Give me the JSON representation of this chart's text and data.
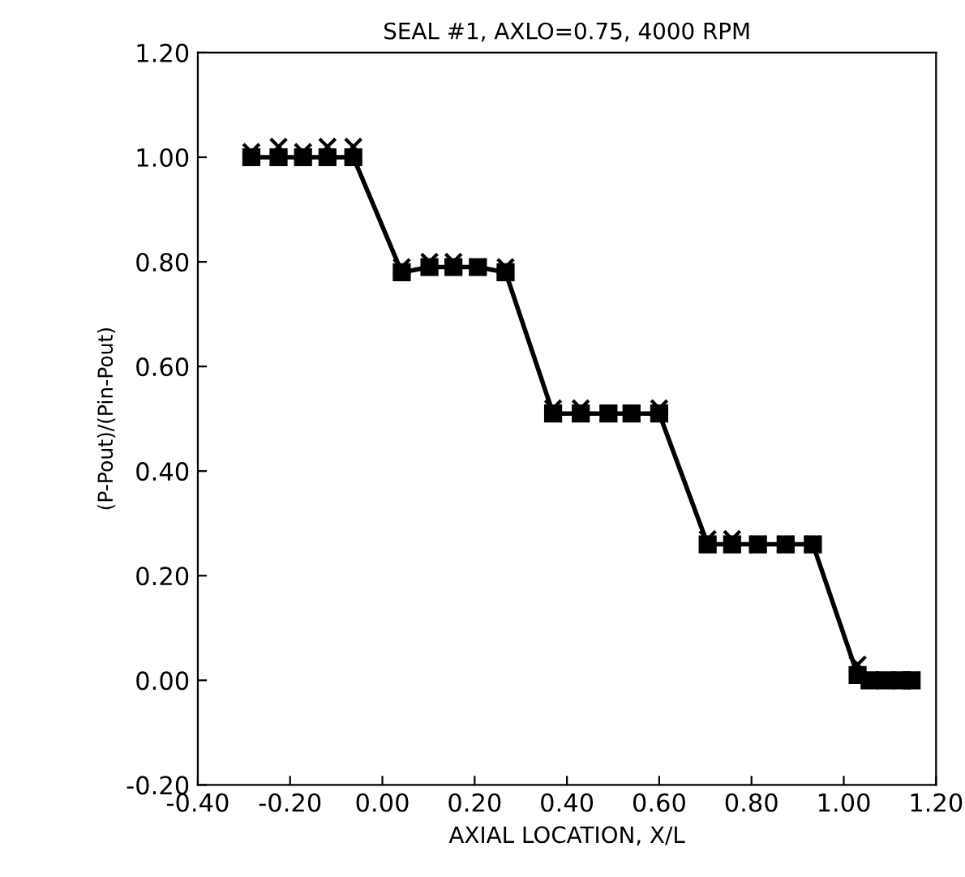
{
  "chart_data": {
    "type": "line",
    "title": "SEAL #1, AXLO=0.75, 4000 RPM",
    "xlabel": "AXIAL LOCATION, X/L",
    "ylabel": "(P-Pout)/(Pin-Pout)",
    "series": [
      {
        "color": "#000000",
        "marker": "square",
        "x": [
          -0.284,
          -0.225,
          -0.172,
          -0.119,
          -0.063,
          0.042,
          0.102,
          0.154,
          0.207,
          0.267,
          0.37,
          0.43,
          0.49,
          0.54,
          0.6,
          0.705,
          0.758,
          0.814,
          0.874,
          0.933,
          1.03,
          1.056,
          1.09,
          1.126,
          1.147
        ],
        "values": [
          1.0,
          1.0,
          1.0,
          1.0,
          1.0,
          0.78,
          0.79,
          0.79,
          0.79,
          0.78,
          0.51,
          0.51,
          0.51,
          0.51,
          0.51,
          0.26,
          0.26,
          0.26,
          0.26,
          0.26,
          0.01,
          0.0,
          0.0,
          0.0,
          0.0
        ]
      },
      {
        "type": "scatter",
        "color": "#000000",
        "marker": "cross",
        "x": [
          -0.284,
          -0.225,
          -0.172,
          -0.119,
          -0.063,
          0.042,
          0.102,
          0.154,
          0.207,
          0.267,
          0.37,
          0.43,
          0.49,
          0.54,
          0.6,
          0.705,
          0.758,
          0.814,
          0.874,
          0.933,
          1.03,
          1.056,
          1.09,
          1.126,
          1.147
        ],
        "values": [
          1.01,
          1.02,
          1.01,
          1.02,
          1.02,
          0.79,
          0.8,
          0.8,
          0.79,
          0.79,
          0.52,
          0.52,
          0.51,
          0.51,
          0.52,
          0.27,
          0.27,
          0.26,
          0.26,
          0.26,
          0.03,
          0.0,
          0.0,
          0.0,
          0.0
        ]
      }
    ],
    "xlim": [
      -0.4,
      1.2
    ],
    "xticks": [
      {
        "value": -0.4,
        "label": "-0.40"
      },
      {
        "value": -0.2,
        "label": "-0.20"
      },
      {
        "value": 0.0,
        "label": "0.00"
      },
      {
        "value": 0.2,
        "label": "0.20"
      },
      {
        "value": 0.4,
        "label": "0.40"
      },
      {
        "value": 0.6,
        "label": "0.60"
      },
      {
        "value": 0.8,
        "label": "0.80"
      },
      {
        "value": 1.0,
        "label": "1.00"
      },
      {
        "value": 1.2,
        "label": "1.20"
      }
    ],
    "ylim": [
      -0.2,
      1.2
    ],
    "yticks": [
      {
        "value": -0.2,
        "label": "-0.20"
      },
      {
        "value": 0.0,
        "label": "0.00"
      },
      {
        "value": 0.2,
        "label": "0.20"
      },
      {
        "value": 0.4,
        "label": "0.40"
      },
      {
        "value": 0.6,
        "label": "0.60"
      },
      {
        "value": 0.8,
        "label": "0.80"
      },
      {
        "value": 1.0,
        "label": "1.00"
      },
      {
        "value": 1.2,
        "label": "1.20"
      }
    ],
    "grid": false
  }
}
